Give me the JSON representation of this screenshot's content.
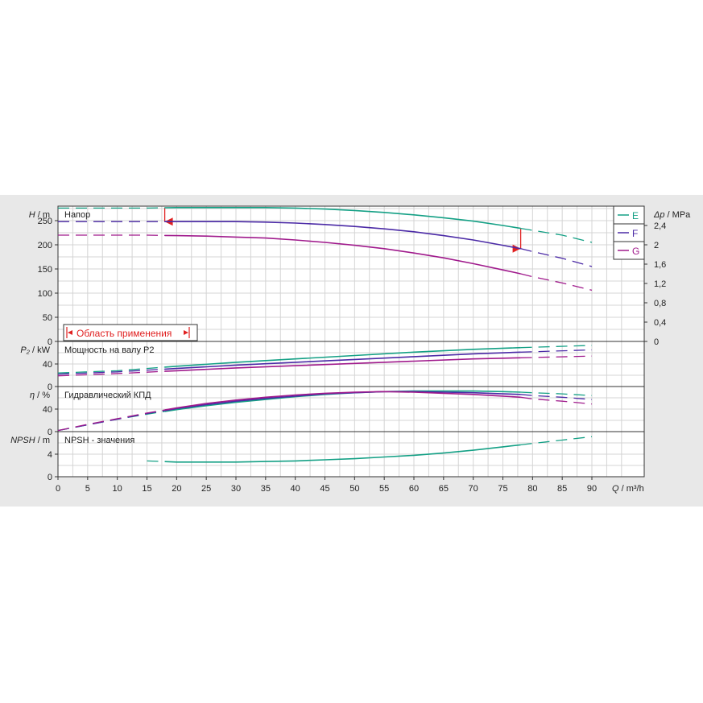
{
  "chart_data": {
    "type": "line",
    "x_axis": {
      "label_italic": "Q",
      "label_unit": " / m³/h",
      "range": [
        0,
        90
      ],
      "ticks": [
        "0",
        "5",
        "10",
        "15",
        "20",
        "25",
        "30",
        "35",
        "40",
        "45",
        "50",
        "55",
        "60",
        "65",
        "70",
        "75",
        "80",
        "85",
        "90"
      ]
    },
    "legend": {
      "placement": "top-right",
      "entries": [
        {
          "name": "E",
          "color": "#14a085"
        },
        {
          "name": "F",
          "color": "#4b2aa6"
        },
        {
          "name": "G",
          "color": "#a01a8c"
        }
      ]
    },
    "application_range": {
      "label": "Область применения",
      "q_min": 18,
      "q_max": 78
    },
    "panels": [
      {
        "id": "head",
        "title": "Напор",
        "y_label_italic": "H",
        "y_label_unit": " / m",
        "y_range": [
          0,
          280
        ],
        "y_ticks": [
          "0",
          "50",
          "100",
          "150",
          "200",
          "250"
        ],
        "right_axis": {
          "label_italic": "Δp",
          "label_unit": " / MPa",
          "range": [
            0,
            2.8
          ],
          "ticks": [
            "0",
            "0,4",
            "0,8",
            "1,2",
            "1,6",
            "2",
            "2,4"
          ]
        },
        "series": [
          {
            "name": "E",
            "color": "#14a085",
            "x": [
              0,
              5,
              10,
              15,
              20,
              25,
              30,
              35,
              40,
              45,
              50,
              55,
              60,
              65,
              70,
              75,
              78,
              80,
              85,
              90
            ],
            "y": [
              276,
              276,
              276,
              276,
              277,
              277,
              277,
              277,
              276,
              274,
              271,
              267,
              262,
              256,
              249,
              240,
              234,
              230,
              220,
              205
            ]
          },
          {
            "name": "F",
            "color": "#4b2aa6",
            "x": [
              0,
              5,
              10,
              15,
              20,
              25,
              30,
              35,
              40,
              45,
              50,
              55,
              60,
              65,
              70,
              75,
              78,
              80,
              85,
              90
            ],
            "y": [
              248,
              248,
              248,
              248,
              248,
              248,
              248,
              247,
              245,
              242,
              238,
              233,
              227,
              219,
              210,
              199,
              192,
              186,
              172,
              155
            ]
          },
          {
            "name": "G",
            "color": "#a01a8c",
            "x": [
              0,
              5,
              10,
              15,
              20,
              25,
              30,
              35,
              40,
              45,
              50,
              55,
              60,
              65,
              70,
              75,
              78,
              80,
              85,
              90
            ],
            "y": [
              220,
              220,
              220,
              220,
              219,
              218,
              216,
              214,
              210,
              205,
              199,
              192,
              183,
              173,
              161,
              148,
              140,
              134,
              121,
              106
            ]
          }
        ]
      },
      {
        "id": "power",
        "title": "Мощность на валу P2",
        "y_label_italic": "P₂",
        "y_label_unit": " / kW",
        "y_range": [
          0,
          80
        ],
        "y_ticks": [
          "0",
          "40"
        ],
        "series": [
          {
            "name": "E",
            "color": "#14a085",
            "x": [
              0,
              10,
              20,
              30,
              40,
              50,
              60,
              70,
              78,
              90
            ],
            "y": [
              24,
              28,
              36,
              43,
              49,
              55,
              61,
              66,
              69,
              73
            ]
          },
          {
            "name": "F",
            "color": "#4b2aa6",
            "x": [
              0,
              10,
              20,
              30,
              40,
              50,
              60,
              70,
              78,
              90
            ],
            "y": [
              22,
              26,
              32,
              38,
              43,
              48,
              53,
              58,
              61,
              65
            ]
          },
          {
            "name": "G",
            "color": "#a01a8c",
            "x": [
              0,
              10,
              20,
              30,
              40,
              50,
              60,
              70,
              78,
              90
            ],
            "y": [
              19,
              23,
              28,
              33,
              37,
              41,
              45,
              49,
              51,
              54
            ]
          }
        ]
      },
      {
        "id": "efficiency",
        "title": "Гидравлический КПД",
        "y_label_italic": "η",
        "y_label_unit": " / %",
        "y_range": [
          0,
          80
        ],
        "y_ticks": [
          "0",
          "40"
        ],
        "series": [
          {
            "name": "E",
            "color": "#14a085",
            "x": [
              0,
              5,
              10,
              15,
              20,
              25,
              30,
              35,
              40,
              45,
              50,
              55,
              60,
              65,
              70,
              75,
              78,
              80,
              85,
              90
            ],
            "y": [
              2,
              12,
              22,
              31,
              39,
              46,
              52,
              57,
              62,
              66,
              69,
              71,
              72,
              72,
              72,
              71,
              70,
              69,
              67,
              64
            ]
          },
          {
            "name": "F",
            "color": "#4b2aa6",
            "x": [
              0,
              5,
              10,
              15,
              20,
              25,
              30,
              35,
              40,
              45,
              50,
              55,
              60,
              65,
              70,
              75,
              78,
              80,
              85,
              90
            ],
            "y": [
              2,
              12,
              22,
              32,
              41,
              48,
              54,
              59,
              63,
              67,
              69,
              71,
              71,
              70,
              69,
              67,
              66,
              64,
              61,
              57
            ]
          },
          {
            "name": "G",
            "color": "#a01a8c",
            "x": [
              0,
              5,
              10,
              15,
              20,
              25,
              30,
              35,
              40,
              45,
              50,
              55,
              60,
              65,
              70,
              75,
              78,
              80,
              85,
              90
            ],
            "y": [
              2,
              13,
              23,
              33,
              42,
              50,
              56,
              61,
              65,
              68,
              70,
              71,
              70,
              68,
              66,
              63,
              61,
              58,
              54,
              49
            ]
          }
        ]
      },
      {
        "id": "npsh",
        "title": "NPSH - значения",
        "y_label_italic": "NPSH",
        "y_label_unit": " / m",
        "y_range": [
          0,
          8
        ],
        "y_ticks": [
          "0",
          "4"
        ],
        "series": [
          {
            "name": "E",
            "color": "#14a085",
            "x": [
              15,
              20,
              25,
              30,
              35,
              40,
              45,
              50,
              55,
              60,
              65,
              70,
              75,
              80,
              85,
              90
            ],
            "y": [
              2.8,
              2.6,
              2.6,
              2.6,
              2.7,
              2.8,
              3.0,
              3.2,
              3.5,
              3.8,
              4.2,
              4.7,
              5.3,
              5.9,
              6.5,
              7.1
            ]
          }
        ]
      }
    ]
  }
}
